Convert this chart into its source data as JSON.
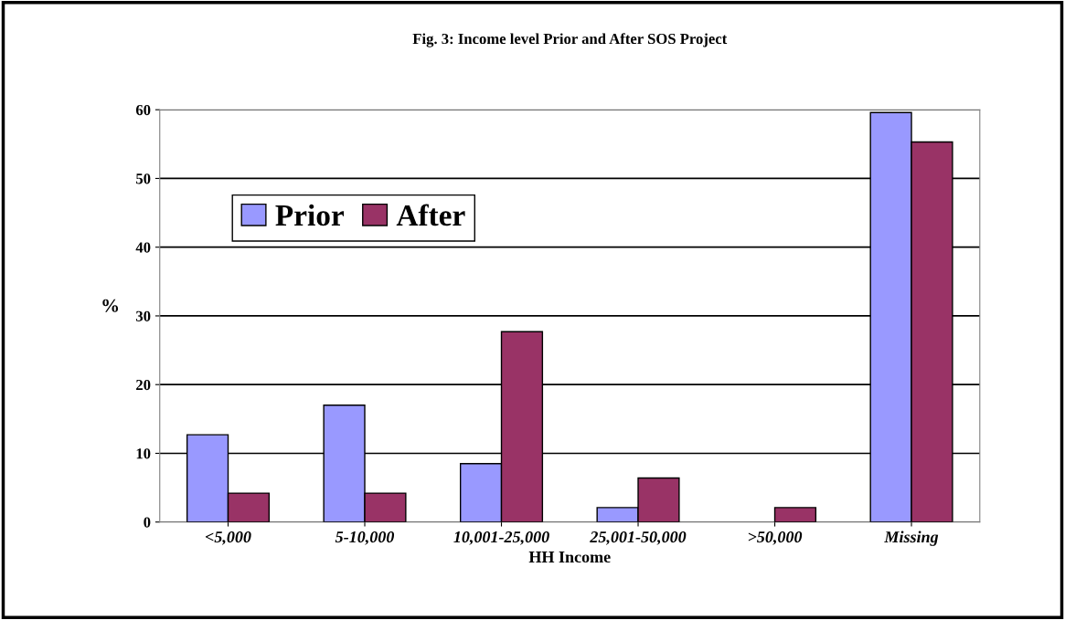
{
  "chart_data": {
    "type": "bar",
    "title": "Fig. 3: Income level Prior and After SOS Project",
    "xlabel": "HH Income",
    "ylabel": "%",
    "categories": [
      "<5,000",
      "5-10,000",
      "10,001-25,000",
      "25,001-50,000",
      ">50,000",
      "Missing"
    ],
    "series": [
      {
        "name": "Prior",
        "color": "#9999ff",
        "values": [
          12.7,
          17,
          8.5,
          2.1,
          0,
          59.6
        ]
      },
      {
        "name": "After",
        "color": "#993366",
        "values": [
          4.2,
          4.2,
          27.7,
          6.4,
          2.1,
          55.3
        ]
      }
    ],
    "ylim": [
      0,
      60
    ],
    "yticks": [
      0,
      10,
      20,
      30,
      40,
      50,
      60
    ],
    "grid": "y",
    "legend": "top left"
  }
}
